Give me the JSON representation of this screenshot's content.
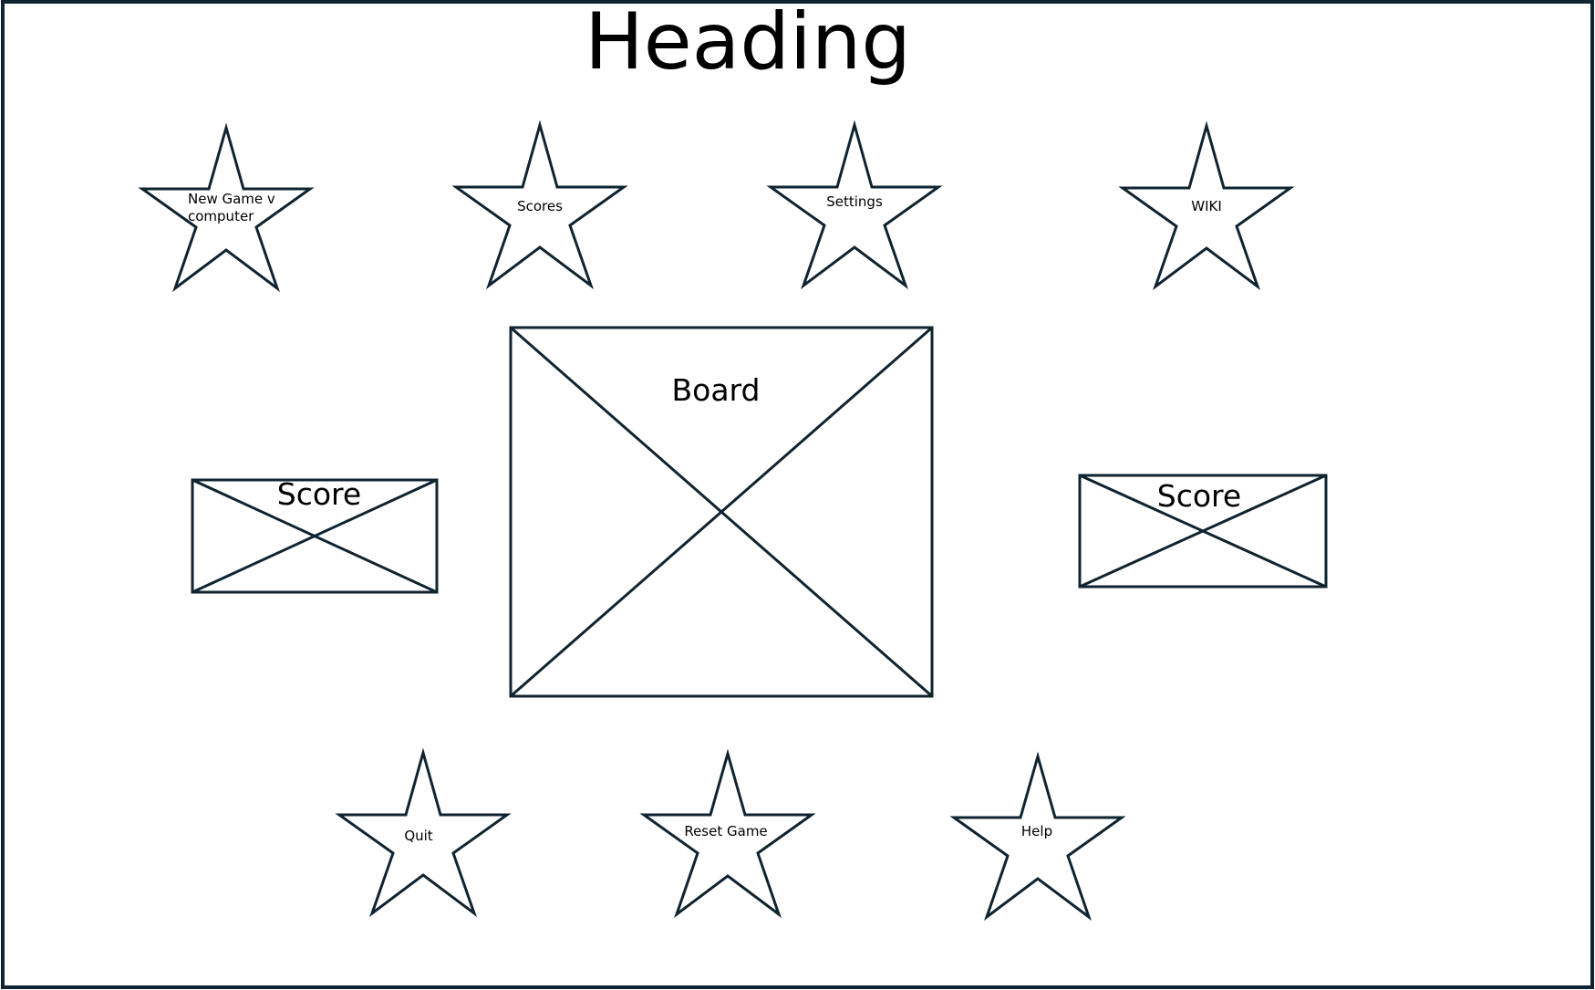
{
  "heading": "Heading",
  "stars": {
    "new_game": "New Game v computer",
    "scores": "Scores",
    "settings": "Settings",
    "wiki": "WIKI",
    "quit": "Quit",
    "reset_game": "Reset Game",
    "help": "Help"
  },
  "placeholders": {
    "board": "Board",
    "score_left": "Score",
    "score_right": "Score"
  },
  "colors": {
    "stroke": "#0f2430",
    "background": "#ffffff",
    "text": "#000000"
  }
}
